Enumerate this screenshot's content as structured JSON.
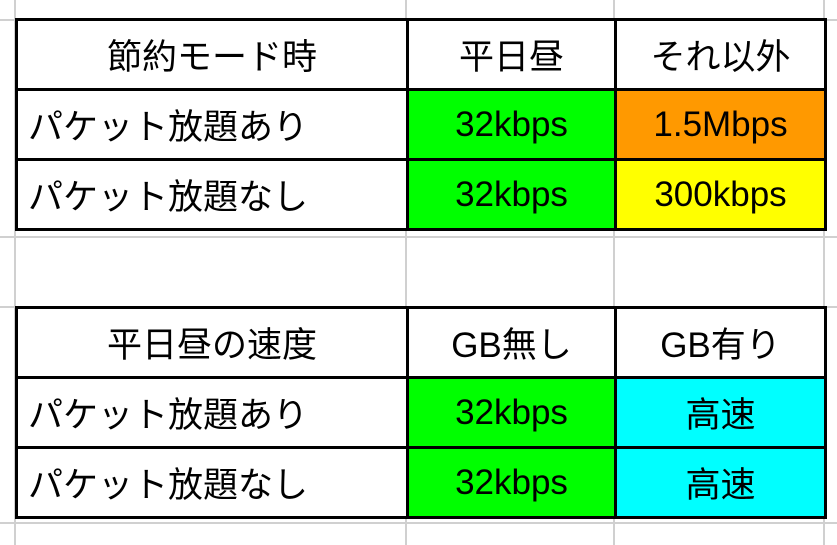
{
  "colors": {
    "green": "#00ff00",
    "orange": "#ff9900",
    "yellow": "#ffff00",
    "cyan": "#00ffff",
    "gridline": "#d0d0d0"
  },
  "table1": {
    "header": [
      "節約モード時",
      "平日昼",
      "それ以外"
    ],
    "rows": [
      {
        "label": "パケット放題あり",
        "cells": [
          "32kbps",
          "1.5Mbps"
        ],
        "fills": [
          "#00ff00",
          "#ff9900"
        ]
      },
      {
        "label": "パケット放題なし",
        "cells": [
          "32kbps",
          "300kbps"
        ],
        "fills": [
          "#00ff00",
          "#ffff00"
        ]
      }
    ]
  },
  "table2": {
    "header": [
      "平日昼の速度",
      "GB無し",
      "GB有り"
    ],
    "rows": [
      {
        "label": "パケット放題あり",
        "cells": [
          "32kbps",
          "高速"
        ],
        "fills": [
          "#00ff00",
          "#00ffff"
        ]
      },
      {
        "label": "パケット放題なし",
        "cells": [
          "32kbps",
          "高速"
        ],
        "fills": [
          "#00ff00",
          "#00ffff"
        ]
      }
    ]
  }
}
